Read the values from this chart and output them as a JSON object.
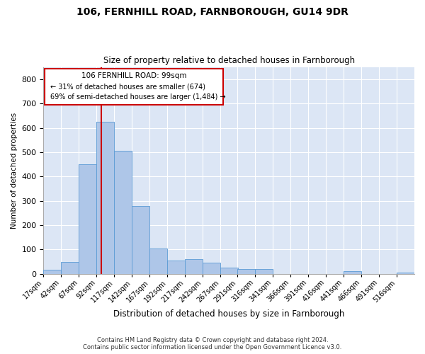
{
  "title": "106, FERNHILL ROAD, FARNBOROUGH, GU14 9DR",
  "subtitle": "Size of property relative to detached houses in Farnborough",
  "xlabel": "Distribution of detached houses by size in Farnborough",
  "ylabel": "Number of detached properties",
  "footer_line1": "Contains HM Land Registry data © Crown copyright and database right 2024.",
  "footer_line2": "Contains public sector information licensed under the Open Government Licence v3.0.",
  "annotation_title": "106 FERNHILL ROAD: 99sqm",
  "annotation_line1": "← 31% of detached houses are smaller (674)",
  "annotation_line2": "69% of semi-detached houses are larger (1,484) →",
  "property_size": 99,
  "bar_edges": [
    17,
    42,
    67,
    92,
    117,
    142,
    167,
    192,
    217,
    242,
    267,
    291,
    316,
    341,
    366,
    391,
    416,
    441,
    466,
    491,
    516
  ],
  "bar_heights": [
    18,
    50,
    450,
    625,
    505,
    280,
    105,
    55,
    60,
    45,
    25,
    20,
    20,
    0,
    0,
    0,
    0,
    10,
    0,
    0,
    5
  ],
  "bar_color": "#aec6e8",
  "bar_edge_color": "#5b9bd5",
  "vline_color": "#cc0000",
  "annotation_box_color": "#cc0000",
  "background_color": "#dce6f5",
  "ylim": [
    0,
    850
  ],
  "yticks": [
    0,
    100,
    200,
    300,
    400,
    500,
    600,
    700,
    800
  ],
  "title_fontsize": 10,
  "subtitle_fontsize": 8.5
}
